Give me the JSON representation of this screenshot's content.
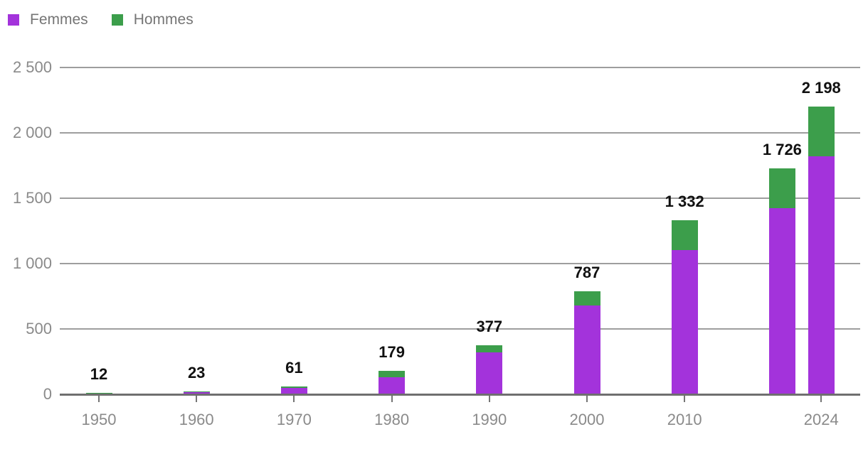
{
  "chart_data": {
    "type": "bar",
    "stacked": true,
    "title": "",
    "xlabel": "",
    "ylabel": "",
    "grid": "horizontal",
    "legend_position": "top-left",
    "x": [
      1950,
      1960,
      1970,
      1980,
      1990,
      2000,
      2010,
      2020,
      2024
    ],
    "series": [
      {
        "name": "Femmes",
        "color": "#a333db",
        "values": [
          11,
          21,
          51,
          131,
          320,
          680,
          1105,
          1425,
          1820
        ]
      },
      {
        "name": "Hommes",
        "color": "#3c9e4b",
        "values": [
          1,
          2,
          10,
          48,
          57,
          107,
          227,
          301,
          378
        ]
      }
    ],
    "totals": [
      12,
      23,
      61,
      179,
      377,
      787,
      1332,
      1726,
      2198
    ],
    "total_labels": [
      "12",
      "23",
      "61",
      "179",
      "377",
      "787",
      "1 332",
      "1 726",
      "2 198"
    ],
    "x_tick_years": [
      1950,
      1960,
      1970,
      1980,
      1990,
      2000,
      2010,
      2024
    ],
    "x_tick_labels": [
      "1950",
      "1960",
      "1970",
      "1980",
      "1990",
      "2000",
      "2010",
      "2024"
    ],
    "y_ticks": [
      0,
      500,
      1000,
      1500,
      2000,
      2500
    ],
    "y_tick_labels": [
      "0",
      "500",
      "1 000",
      "1 500",
      "2 000",
      "2 500"
    ],
    "ylim": [
      0,
      2500
    ]
  },
  "colors": {
    "gridline": "#9e9e9e",
    "axis_line": "#6f6f6f",
    "tick": "#757575",
    "axis_text": "#8a8a8a",
    "legend_text": "#757575",
    "value_text": "#111111",
    "background": "#ffffff"
  }
}
